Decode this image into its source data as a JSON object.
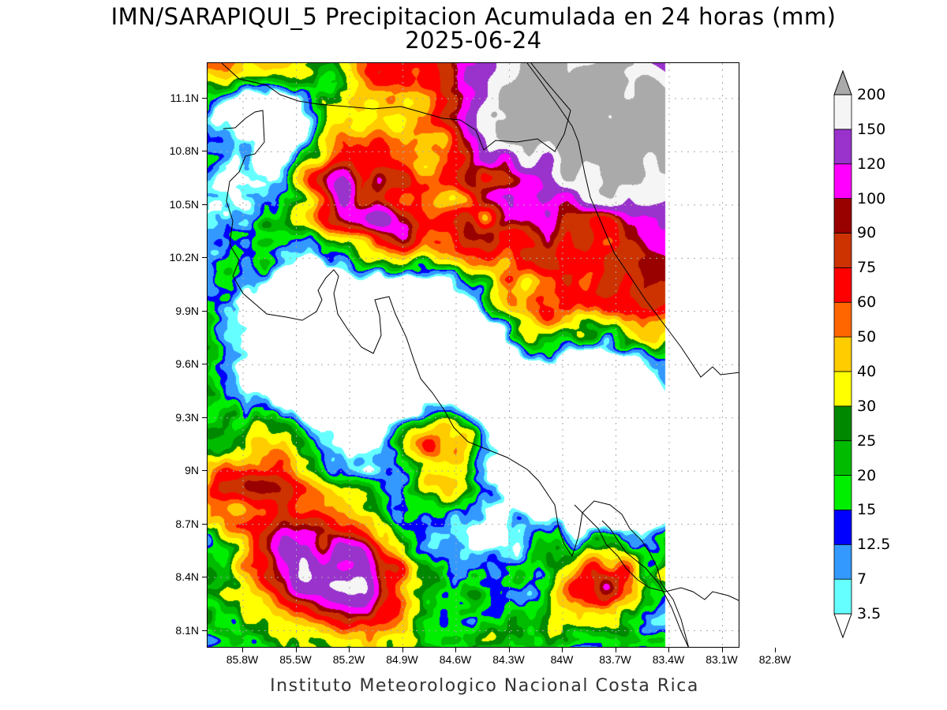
{
  "title": {
    "line1": "IMN/SARAPIQUI_5 Precipitacion Acumulada en 24 horas (mm)",
    "line2": "2025-06-24"
  },
  "footer": "Instituto Meteorologico Nacional Costa Rica",
  "axes": {
    "lat_labels": [
      "11.1N",
      "10.8N",
      "10.5N",
      "10.2N",
      "9.9N",
      "9.6N",
      "9.3N",
      "9N",
      "8.7N",
      "8.4N",
      "8.1N"
    ],
    "lon_labels": [
      "85.8W",
      "85.5W",
      "85.2W",
      "84.9W",
      "84.6W",
      "84.3W",
      "84W",
      "83.7W",
      "83.4W",
      "83.1W",
      "82.8W"
    ],
    "lat_range": [
      8.0,
      11.3
    ],
    "lon_range": [
      86.0,
      83.0
    ]
  },
  "legend": {
    "levels": [
      "3.5",
      "7",
      "12.5",
      "15",
      "20",
      "25",
      "30",
      "40",
      "50",
      "60",
      "75",
      "90",
      "100",
      "120",
      "150",
      "200"
    ],
    "colors": [
      "#ffffff",
      "#66ffff",
      "#3399ff",
      "#0000ff",
      "#00ee00",
      "#00bb00",
      "#008800",
      "#ffff00",
      "#ffcc00",
      "#ff6600",
      "#ff0000",
      "#cc3300",
      "#990000",
      "#ff00ff",
      "#9933cc",
      "#f5f5f5",
      "#aaaaaa"
    ]
  },
  "colors": {
    "coastline": "#000000",
    "grid": "#aaaaaa"
  }
}
